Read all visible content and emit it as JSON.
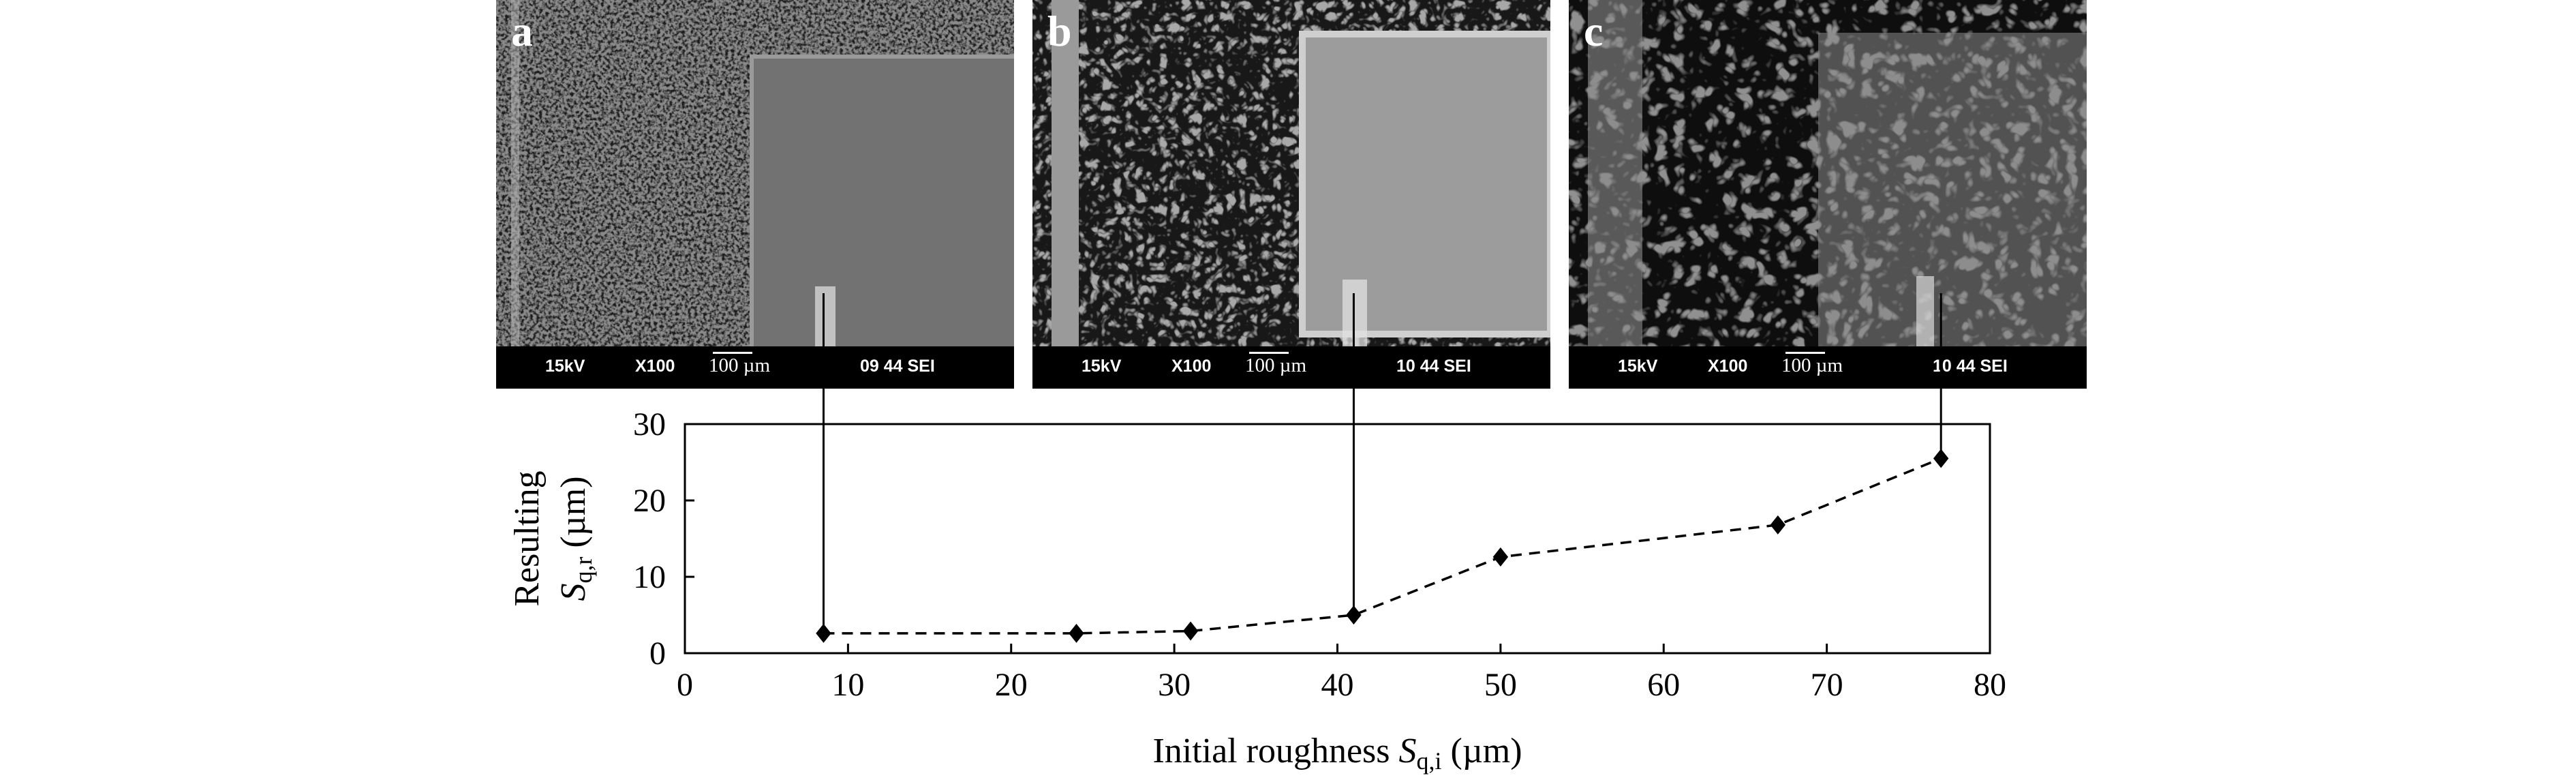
{
  "panels": [
    {
      "letter": "a",
      "kv": "15kV",
      "mag": "X100",
      "scale": "100 µm",
      "code": "09 44 SEI"
    },
    {
      "letter": "b",
      "kv": "15kV",
      "mag": "X100",
      "scale": "100 µm",
      "code": "10 44 SEI"
    },
    {
      "letter": "c",
      "kv": "15kV",
      "mag": "X100",
      "scale": "100 µm",
      "code": "10 44 SEI"
    }
  ],
  "chart_data": {
    "type": "line",
    "x": [
      8.5,
      24,
      31,
      41,
      50,
      67,
      77
    ],
    "series": [
      {
        "values": [
          2.6,
          2.6,
          2.9,
          5.0,
          12.6,
          16.8,
          25.5
        ],
        "marker": "diamond",
        "line": "dashed",
        "color": "#000000"
      }
    ],
    "xlim": [
      0,
      80
    ],
    "ylim": [
      0,
      30
    ],
    "xticks": [
      "0",
      "10",
      "20",
      "30",
      "40",
      "50",
      "60",
      "70",
      "80"
    ],
    "yticks": [
      "0",
      "10",
      "20",
      "30"
    ],
    "xlabel": "Initial roughness S_q,i (µm)",
    "ylabel": "Resulting S_q,r (µm)",
    "grid": false,
    "links": [
      {
        "panel": "a",
        "x": 8.5
      },
      {
        "panel": "b",
        "x": 41
      },
      {
        "panel": "c",
        "x": 77
      }
    ]
  }
}
